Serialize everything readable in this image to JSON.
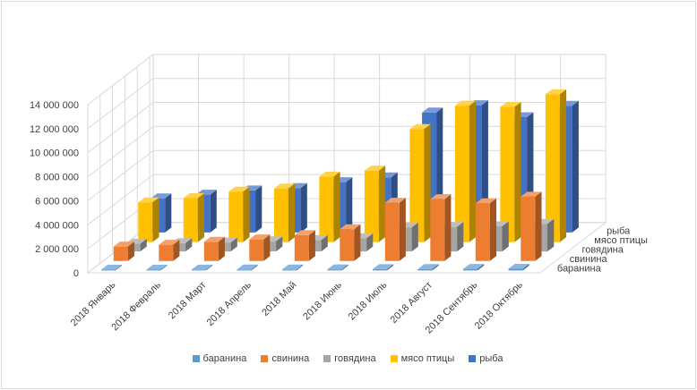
{
  "chart_data": {
    "type": "bar",
    "variant": "3d-column",
    "title": "",
    "categories": [
      "2018 Январь",
      "2018 Февраль",
      "2018 Март",
      "2018 Апрель",
      "2018 Май",
      "2018 Июнь",
      "2018 Июль",
      "2018 Август",
      "2018 Сентябрь",
      "2018 Октябрь"
    ],
    "y_ticks": [
      "0",
      "2 000 000",
      "4 000 000",
      "6 000 000",
      "8 000 000",
      "10 000 000",
      "12 000 000",
      "14 000 000"
    ],
    "ylim": [
      0,
      14000000
    ],
    "grid": true,
    "legend_position": "bottom",
    "series": [
      {
        "name": "баранина",
        "color": "#5b9bd5",
        "values": [
          60000,
          60000,
          70000,
          80000,
          80000,
          90000,
          110000,
          120000,
          130000,
          140000
        ]
      },
      {
        "name": "свинина",
        "color": "#ed7d31",
        "values": [
          1200000,
          1350000,
          1600000,
          1800000,
          2150000,
          2650000,
          4850000,
          5150000,
          4800000,
          5350000
        ]
      },
      {
        "name": "говядина",
        "color": "#a5a5a5",
        "values": [
          650000,
          700000,
          750000,
          850000,
          950000,
          1100000,
          2000000,
          2050000,
          2100000,
          2300000
        ]
      },
      {
        "name": "мясо птицы",
        "color": "#ffc000",
        "values": [
          3300000,
          3650000,
          4200000,
          4450000,
          5450000,
          5950000,
          9400000,
          11350000,
          11250000,
          12300000
        ]
      },
      {
        "name": "рыба",
        "color": "#4472c4",
        "values": [
          2850000,
          3150000,
          3500000,
          3700000,
          4200000,
          4600000,
          10000000,
          10600000,
          9600000,
          10550000
        ]
      }
    ]
  }
}
